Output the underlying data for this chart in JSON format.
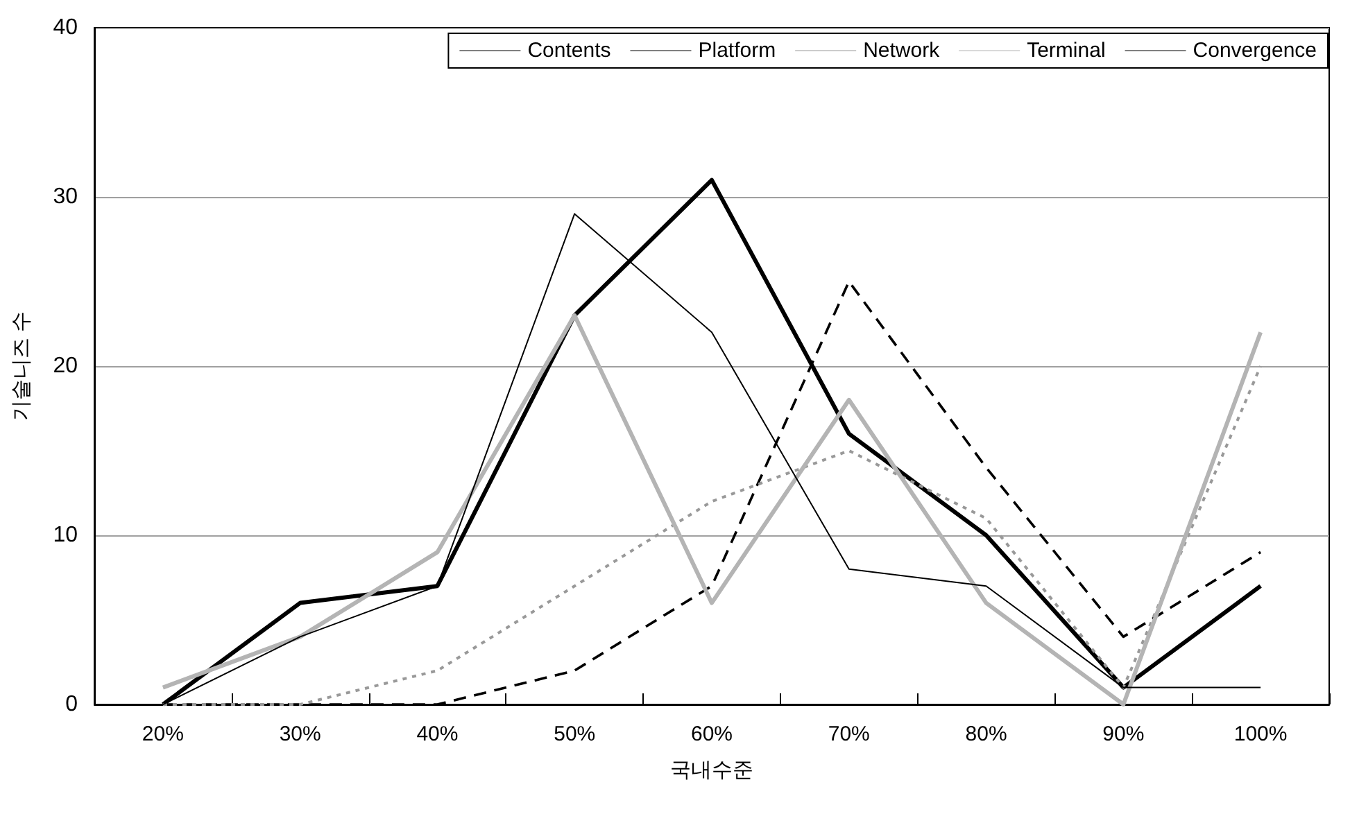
{
  "chart_data": {
    "type": "line",
    "xlabel": "국내수준",
    "ylabel": "기술니즈 수",
    "categories": [
      "20%",
      "30%",
      "40%",
      "50%",
      "60%",
      "70%",
      "80%",
      "90%",
      "100%"
    ],
    "series": [
      {
        "name": "Contents",
        "color": "#000000",
        "line_style": "solid",
        "values": [
          0,
          6,
          7,
          23,
          31,
          16,
          10,
          1,
          7
        ]
      },
      {
        "name": "Platform",
        "color": "#000000",
        "line_style": "dashed",
        "values": [
          0,
          0,
          0,
          2,
          7,
          25,
          14,
          4,
          9
        ]
      },
      {
        "name": "Network",
        "color": "#999999",
        "line_style": "dotted",
        "values": [
          0,
          0,
          2,
          7,
          12,
          15,
          11,
          1,
          20
        ]
      },
      {
        "name": "Terminal",
        "color": "#b4b4b4",
        "line_style": "solid",
        "values": [
          1,
          4,
          9,
          23,
          6,
          18,
          6,
          0,
          22
        ]
      },
      {
        "name": "Convergence",
        "color": "#000000",
        "line_style": "solid",
        "values": [
          0,
          4,
          7,
          29,
          22,
          8,
          7,
          1,
          1
        ]
      }
    ],
    "ylim": [
      0,
      40
    ],
    "yticks": [
      0,
      10,
      20,
      30,
      40
    ],
    "grid": "y",
    "legend": "top right",
    "marker": "none"
  }
}
